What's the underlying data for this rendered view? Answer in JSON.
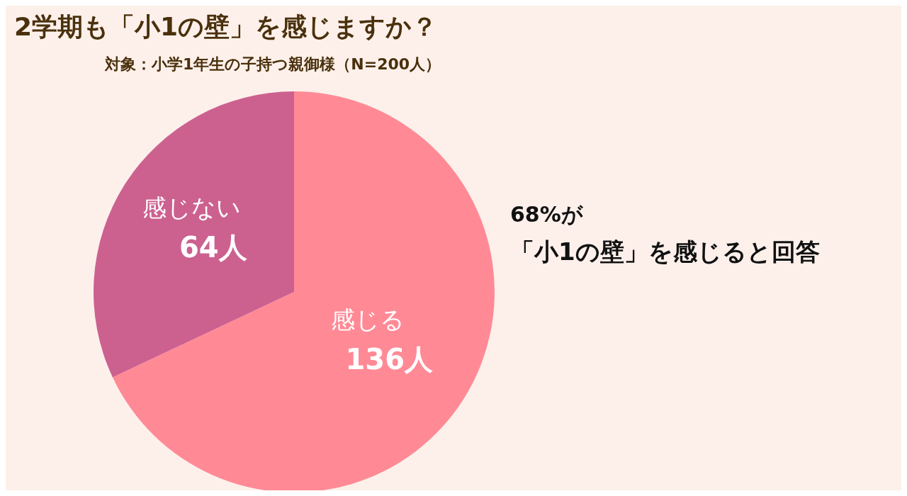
{
  "chart_data": {
    "type": "pie",
    "title": "2学期も「小1の壁」を感じますか？",
    "subtitle": "対象：小学1年生の子持つ親御様（N=200人）",
    "categories": [
      "感じる",
      "感じない"
    ],
    "values": [
      136,
      64
    ],
    "colors": [
      "#ff8a96",
      "#cc6190"
    ],
    "value_labels": [
      "136人",
      "64人"
    ],
    "annotations": [
      "68%が",
      "「小1の壁」を感じると回答"
    ]
  }
}
